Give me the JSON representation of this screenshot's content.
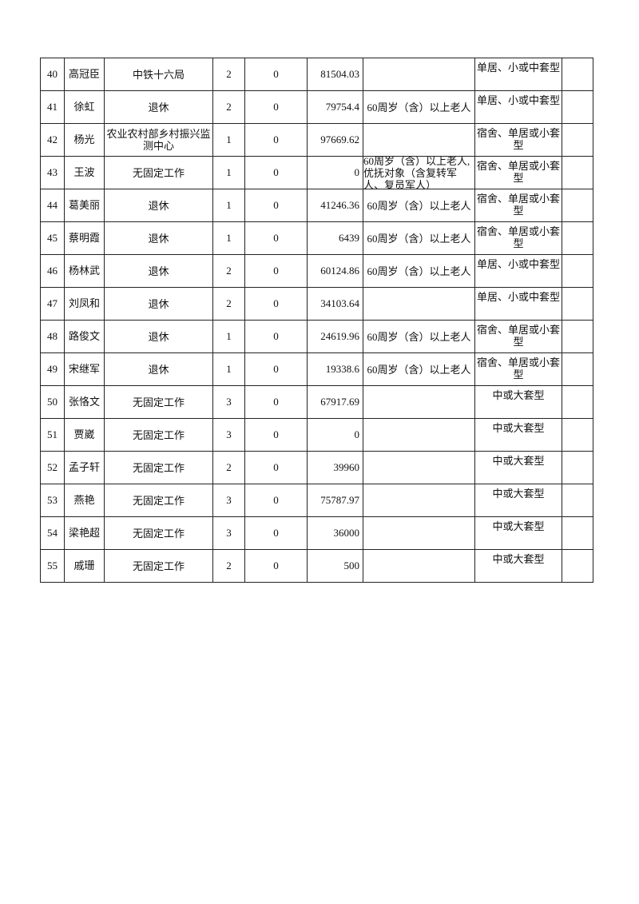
{
  "rows": [
    {
      "no": "40",
      "name": "高冠臣",
      "work": "中铁十六局",
      "members": "2",
      "col5": "0",
      "income": "81504.03",
      "category": "",
      "housing": "单居、小或中套型",
      "note": ""
    },
    {
      "no": "41",
      "name": "徐虹",
      "work": "退休",
      "members": "2",
      "col5": "0",
      "income": "79754.4",
      "category": "60周岁（含）以上老人",
      "housing": "单居、小或中套型",
      "note": ""
    },
    {
      "no": "42",
      "name": "杨光",
      "work": "农业农村部乡村振兴监测中心",
      "members": "1",
      "col5": "0",
      "income": "97669.62",
      "category": "",
      "housing": "宿舍、单居或小套型",
      "note": ""
    },
    {
      "no": "43",
      "name": "王波",
      "work": "无固定工作",
      "members": "1",
      "col5": "0",
      "income": "0",
      "category": "60周岁（含）以上老人,优抚对象（含复转军人、复员军人）",
      "housing": "宿舍、单居或小套型",
      "note": ""
    },
    {
      "no": "44",
      "name": "葛美丽",
      "work": "退休",
      "members": "1",
      "col5": "0",
      "income": "41246.36",
      "category": "60周岁（含）以上老人",
      "housing": "宿舍、单居或小套型",
      "note": ""
    },
    {
      "no": "45",
      "name": "蔡明霞",
      "work": "退休",
      "members": "1",
      "col5": "0",
      "income": "6439",
      "category": "60周岁（含）以上老人",
      "housing": "宿舍、单居或小套型",
      "note": ""
    },
    {
      "no": "46",
      "name": "杨林武",
      "work": "退休",
      "members": "2",
      "col5": "0",
      "income": "60124.86",
      "category": "60周岁（含）以上老人",
      "housing": "单居、小或中套型",
      "note": ""
    },
    {
      "no": "47",
      "name": "刘凤和",
      "work": "退休",
      "members": "2",
      "col5": "0",
      "income": "34103.64",
      "category": "",
      "housing": "单居、小或中套型",
      "note": ""
    },
    {
      "no": "48",
      "name": "路俊文",
      "work": "退休",
      "members": "1",
      "col5": "0",
      "income": "24619.96",
      "category": "60周岁（含）以上老人",
      "housing": "宿舍、单居或小套型",
      "note": ""
    },
    {
      "no": "49",
      "name": "宋继军",
      "work": "退休",
      "members": "1",
      "col5": "0",
      "income": "19338.6",
      "category": "60周岁（含）以上老人",
      "housing": "宿舍、单居或小套型",
      "note": ""
    },
    {
      "no": "50",
      "name": "张恪文",
      "work": "无固定工作",
      "members": "3",
      "col5": "0",
      "income": "67917.69",
      "category": "",
      "housing": "中或大套型",
      "note": ""
    },
    {
      "no": "51",
      "name": "贾崴",
      "work": "无固定工作",
      "members": "3",
      "col5": "0",
      "income": "0",
      "category": "",
      "housing": "中或大套型",
      "note": ""
    },
    {
      "no": "52",
      "name": "孟子轩",
      "work": "无固定工作",
      "members": "2",
      "col5": "0",
      "income": "39960",
      "category": "",
      "housing": "中或大套型",
      "note": ""
    },
    {
      "no": "53",
      "name": "燕艳",
      "work": "无固定工作",
      "members": "3",
      "col5": "0",
      "income": "75787.97",
      "category": "",
      "housing": "中或大套型",
      "note": ""
    },
    {
      "no": "54",
      "name": "梁艳超",
      "work": "无固定工作",
      "members": "3",
      "col5": "0",
      "income": "36000",
      "category": "",
      "housing": "中或大套型",
      "note": ""
    },
    {
      "no": "55",
      "name": "戚珊",
      "work": "无固定工作",
      "members": "2",
      "col5": "0",
      "income": "500",
      "category": "",
      "housing": "中或大套型",
      "note": ""
    }
  ]
}
